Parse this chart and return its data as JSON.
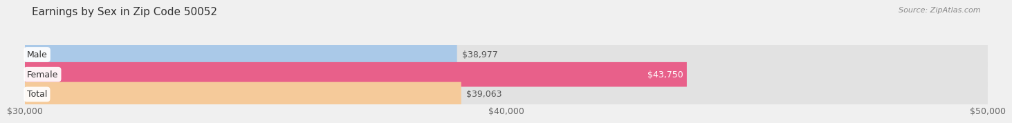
{
  "title": "Earnings by Sex in Zip Code 50052",
  "source": "Source: ZipAtlas.com",
  "categories": [
    "Male",
    "Female",
    "Total"
  ],
  "values": [
    38977,
    43750,
    39063
  ],
  "bar_colors": [
    "#aac9e8",
    "#e8608a",
    "#f5ca9a"
  ],
  "bar_bg_color": "#e2e2e2",
  "value_labels": [
    "$38,977",
    "$43,750",
    "$39,063"
  ],
  "label_colors": [
    "#555555",
    "#ffffff",
    "#555555"
  ],
  "x_min": 30000,
  "x_max": 50000,
  "x_ticks": [
    30000,
    40000,
    50000
  ],
  "x_tick_labels": [
    "$30,000",
    "$40,000",
    "$50,000"
  ],
  "background_color": "#f0f0f0",
  "title_fontsize": 11,
  "source_fontsize": 8,
  "label_fontsize": 9,
  "tick_fontsize": 9,
  "bar_height": 0.62,
  "category_label_color": "#555544"
}
